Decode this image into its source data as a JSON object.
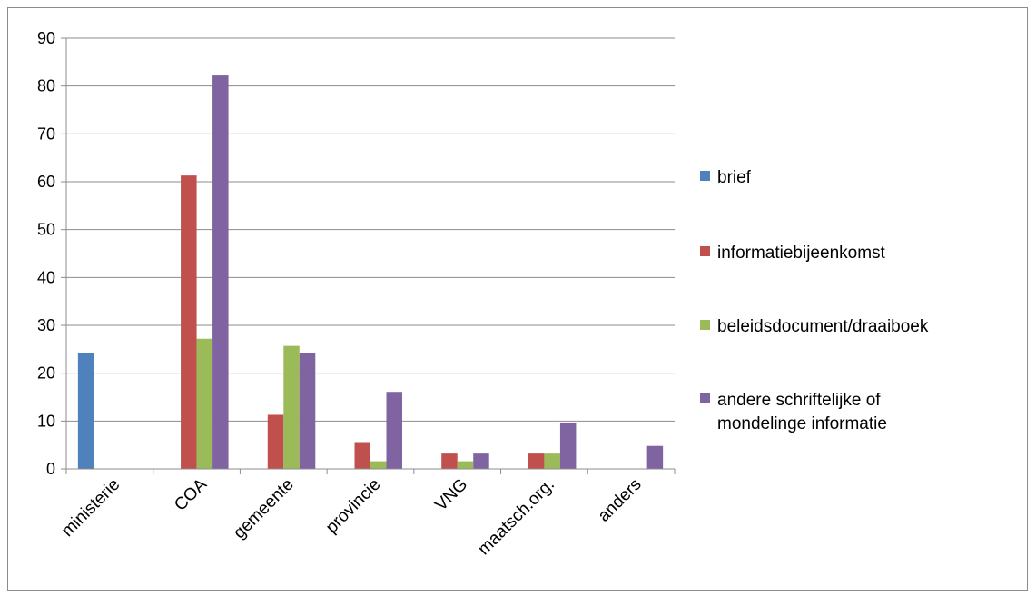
{
  "chart_data": {
    "type": "bar",
    "categories": [
      "ministerie",
      "COA",
      "gemeente",
      "provincie",
      "VNG",
      "maatsch.org.",
      "anders"
    ],
    "series": [
      {
        "name": "brief",
        "color": "#4F81BD",
        "values": [
          24.2,
          0,
          0,
          0,
          0,
          0,
          0
        ]
      },
      {
        "name": "informatiebijeenkomst",
        "color": "#C0504D",
        "values": [
          0,
          61.3,
          11.3,
          5.6,
          3.2,
          3.2,
          0
        ]
      },
      {
        "name": "beleidsdocument/draaiboek",
        "color": "#9BBB59",
        "values": [
          0,
          27.2,
          25.7,
          1.6,
          1.6,
          3.2,
          0
        ]
      },
      {
        "name": "andere schriftelijke of mondelinge informatie",
        "legend_lines": [
          "andere schriftelijke of",
          "mondelinge informatie"
        ],
        "color": "#8064A2",
        "values": [
          0,
          82.2,
          24.2,
          16.1,
          3.2,
          9.7,
          4.8
        ]
      }
    ],
    "yticks": [
      0,
      10,
      20,
      30,
      40,
      50,
      60,
      70,
      80,
      90
    ],
    "ylim": [
      0,
      90
    ],
    "grid": true,
    "legend": "right",
    "title": "",
    "xlabel": "",
    "ylabel": ""
  }
}
